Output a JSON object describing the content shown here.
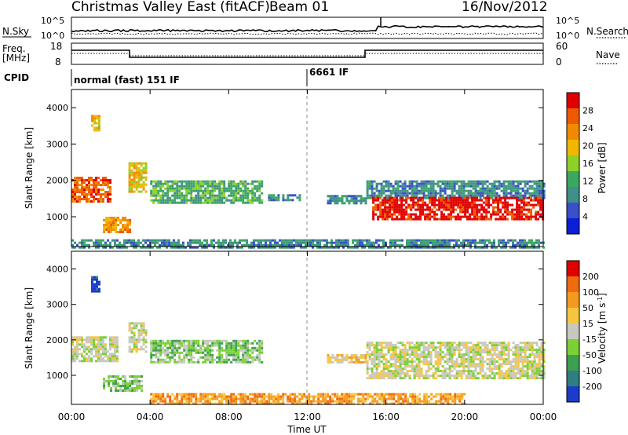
{
  "header": {
    "title": "Christmas Valley East (fitACF)",
    "beam": "Beam 01",
    "date": "16/Nov/2012"
  },
  "top_panels": {
    "nsky_label": "N.Sky",
    "nsearch_label": "N.Search",
    "noise_ticks": [
      "10^5",
      "10^0"
    ],
    "freq_label_line1": "Freq.",
    "freq_label_line2": "[MHz]",
    "freq_ticks": [
      "18",
      "8"
    ],
    "nave_ticks": [
      "60",
      "0"
    ],
    "nave_label": "Nave",
    "cpid_label": "CPID",
    "cpid_segments": [
      {
        "start_hour": 0,
        "label": "normal (fast) 151 IF"
      },
      {
        "start_hour": 12,
        "label": "6661 IF"
      }
    ]
  },
  "time_axis": {
    "label": "Time UT",
    "ticks": [
      "00:00",
      "04:00",
      "08:00",
      "12:00",
      "16:00",
      "20:00",
      "00:00"
    ],
    "range_hours": [
      0,
      24
    ]
  },
  "colors": {
    "power": [
      "#0a1fd6",
      "#3a4fc8",
      "#3f8f8a",
      "#3aa860",
      "#8fd02a",
      "#f0b800",
      "#f28a00",
      "#ee5a00",
      "#e00000"
    ],
    "velocity": [
      "#1b3bc8",
      "#2f7f80",
      "#3ca050",
      "#7ad035",
      "#c8c8c0",
      "#f5c640",
      "#f59a20",
      "#ef6a10",
      "#e00000"
    ]
  },
  "chart_data": [
    {
      "type": "heatmap",
      "name": "power",
      "ylabel": "Slant Range [km]",
      "colorbar_label": "Power [dB]",
      "colorbar_ticks": [
        "28",
        "24",
        "20",
        "16",
        "12",
        "8",
        "4"
      ],
      "ylim": [
        180,
        4500
      ],
      "yticks": [
        "4000",
        "3000",
        "2000",
        "1000"
      ],
      "xlim_hours": [
        0,
        24
      ],
      "regions": [
        {
          "from_h": 0.0,
          "to_h": 2.0,
          "range_km": [
            1400,
            2100
          ],
          "level": 7
        },
        {
          "from_h": 1.0,
          "to_h": 1.4,
          "range_km": [
            3350,
            3800
          ],
          "level": 5
        },
        {
          "from_h": 1.6,
          "to_h": 3.0,
          "range_km": [
            600,
            1000
          ],
          "level": 6
        },
        {
          "from_h": 2.9,
          "to_h": 3.8,
          "range_km": [
            1700,
            2500
          ],
          "level": 5
        },
        {
          "from_h": 4.0,
          "to_h": 9.7,
          "range_km": [
            1400,
            2000
          ],
          "level": 3
        },
        {
          "from_h": 10.0,
          "to_h": 11.6,
          "range_km": [
            1450,
            1620
          ],
          "level": 2
        },
        {
          "from_h": 13.0,
          "to_h": 15.0,
          "range_km": [
            1350,
            1600
          ],
          "level": 2
        },
        {
          "from_h": 15.0,
          "to_h": 24.0,
          "range_km": [
            1500,
            2000
          ],
          "level": 2
        },
        {
          "from_h": 15.3,
          "to_h": 24.0,
          "range_km": [
            950,
            1550
          ],
          "level": 8
        },
        {
          "from_h": 0.0,
          "to_h": 24.0,
          "range_km": [
            180,
            380
          ],
          "level": 2
        }
      ]
    },
    {
      "type": "heatmap",
      "name": "velocity",
      "ylabel": "Slant Range [km]",
      "colorbar_label": "Velocity [m s^-1]",
      "colorbar_ticks": [
        "200",
        "100",
        "50",
        "15",
        "-15",
        "-50",
        "-100",
        "-200"
      ],
      "ylim": [
        180,
        4500
      ],
      "yticks": [
        "4000",
        "3000",
        "2000",
        "1000"
      ],
      "xlim_hours": [
        0,
        24
      ],
      "regions": [
        {
          "from_h": 0.0,
          "to_h": 2.3,
          "range_km": [
            1400,
            2100
          ],
          "level": 4
        },
        {
          "from_h": 1.0,
          "to_h": 1.4,
          "range_km": [
            3350,
            3800
          ],
          "level": 0
        },
        {
          "from_h": 1.6,
          "to_h": 3.6,
          "range_km": [
            600,
            1000
          ],
          "level": 3
        },
        {
          "from_h": 2.9,
          "to_h": 3.8,
          "range_km": [
            1700,
            2500
          ],
          "level": 4
        },
        {
          "from_h": 4.0,
          "to_h": 9.7,
          "range_km": [
            1400,
            2000
          ],
          "level": 3
        },
        {
          "from_h": 13.0,
          "to_h": 15.0,
          "range_km": [
            1350,
            1600
          ],
          "level": 5
        },
        {
          "from_h": 15.0,
          "to_h": 24.0,
          "range_km": [
            900,
            1950
          ],
          "level": 4
        },
        {
          "from_h": 4.0,
          "to_h": 20.0,
          "range_km": [
            180,
            500
          ],
          "level": 6
        }
      ]
    }
  ]
}
